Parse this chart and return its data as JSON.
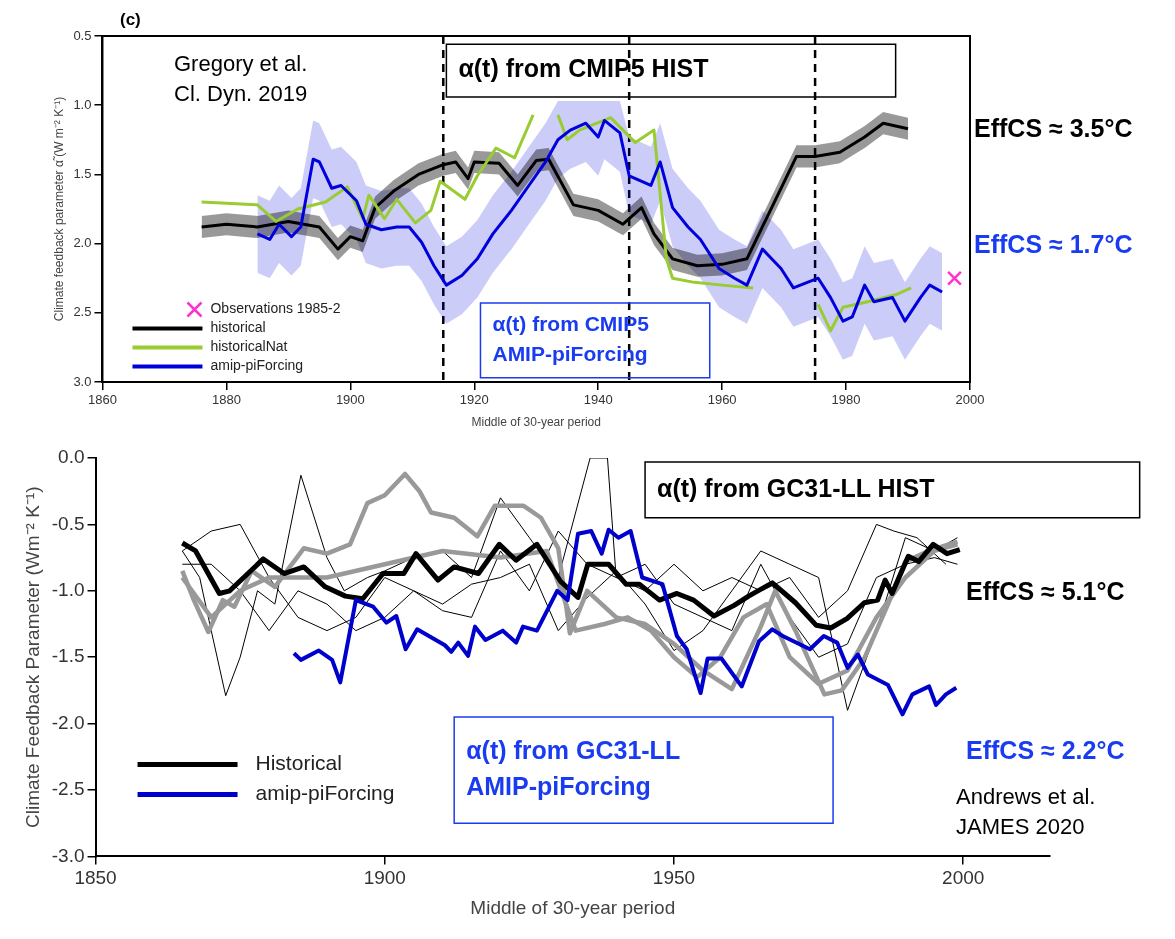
{
  "chart_data": [
    {
      "type": "line",
      "xlabel": "Middle of 30-year period",
      "ylabel": "Climate feedback parameter α̃ (W m⁻² K⁻¹)",
      "xlim": [
        1860,
        2000
      ],
      "ylim": [
        3,
        0.5
      ],
      "xticks": [
        1860,
        1880,
        1900,
        1920,
        1940,
        1960,
        1980,
        2000
      ],
      "yticks": [
        0.5,
        {
          "value": 1,
          "label": "1.0"
        },
        1.5,
        {
          "value": 2,
          "label": "2.0"
        },
        2.5,
        {
          "value": 3,
          "label": "3.0"
        }
      ],
      "legend": "bottom left",
      "ref_lines": [
        {
          "axis": "x",
          "value": 1915,
          "line_style": "dashed"
        },
        {
          "axis": "x",
          "value": 1945,
          "line_style": "dashed"
        },
        {
          "axis": "x",
          "value": 1975,
          "line_style": "dashed"
        }
      ],
      "annotations": [
        "(c)",
        "Gregory et al.\nCl. Dyn. 2019",
        "α(t) from CMIP5 HIST",
        "α(t) from CMIP5\nAMIP-piForcing",
        "EffCS ≈ 3.5°C",
        "EffCS ≈ 1.7°C"
      ],
      "series": [
        {
          "name": "Observations 1985-2",
          "type": "scatter",
          "marker": "cross",
          "color": "#ff33cc",
          "x": [
            1997.5
          ],
          "values": [
            2.25
          ]
        },
        {
          "name": "historical",
          "color": "#000000",
          "x": [
            1876,
            1880,
            1885,
            1890,
            1895,
            1898,
            1900,
            1902,
            1904,
            1907,
            1911,
            1915,
            1917,
            1919,
            1920,
            1924,
            1927,
            1930,
            1932,
            1936,
            1940,
            1944,
            1947,
            1949,
            1952,
            1956,
            1960,
            1964,
            1968,
            1972,
            1975,
            1979,
            1983,
            1986,
            1990
          ],
          "values": [
            1.88,
            1.86,
            1.88,
            1.84,
            1.88,
            2.04,
            1.95,
            1.98,
            1.74,
            1.62,
            1.5,
            1.43,
            1.41,
            1.53,
            1.41,
            1.42,
            1.58,
            1.4,
            1.39,
            1.72,
            1.76,
            1.86,
            1.74,
            1.93,
            2.11,
            2.16,
            2.15,
            2.11,
            1.74,
            1.37,
            1.37,
            1.34,
            1.23,
            1.13,
            1.17
          ],
          "lower": [
            1.8,
            1.78,
            1.8,
            1.76,
            1.8,
            1.96,
            1.87,
            1.9,
            1.66,
            1.54,
            1.42,
            1.35,
            1.33,
            1.45,
            1.33,
            1.34,
            1.5,
            1.32,
            1.31,
            1.64,
            1.68,
            1.78,
            1.66,
            1.85,
            2.03,
            2.08,
            2.07,
            2.03,
            1.66,
            1.29,
            1.29,
            1.26,
            1.15,
            1.05,
            1.09
          ],
          "upper": [
            1.96,
            1.94,
            1.96,
            1.92,
            1.96,
            2.12,
            2.03,
            2.06,
            1.82,
            1.7,
            1.58,
            1.51,
            1.49,
            1.61,
            1.49,
            1.5,
            1.66,
            1.48,
            1.47,
            1.8,
            1.84,
            1.94,
            1.82,
            2.01,
            2.19,
            2.24,
            2.23,
            2.19,
            1.82,
            1.45,
            1.45,
            1.42,
            1.31,
            1.21,
            1.25
          ]
        },
        {
          "name": "historicalNat",
          "color": "#99cc33",
          "x": [
            1876,
            1885,
            1888,
            1891.5,
            1896,
            1899.5,
            1902,
            1903,
            1905.5,
            1907.5,
            1910.5,
            1913,
            1914.5,
            1918.5,
            1920.5,
            1923.5,
            1926.5,
            1929.5,
            1931.5,
            1933.5,
            1935,
            1937,
            1942,
            1946,
            1949,
            1951,
            1952,
            1955.5,
            1960,
            1965,
            1970,
            1975.5,
            1977.5,
            1979.5,
            1983.5,
            1988,
            1990.5
          ],
          "values": [
            1.7,
            1.72,
            1.84,
            1.75,
            1.7,
            1.59,
            1.82,
            1.65,
            1.82,
            1.68,
            1.85,
            1.76,
            1.55,
            1.68,
            1.51,
            1.31,
            1.38,
            1.07,
            null,
            1.07,
            1.25,
            1.18,
            1.09,
            1.27,
            1.18,
            2.11,
            2.25,
            2.28,
            2.3,
            2.32,
            null,
            2.44,
            2.63,
            2.46,
            2.42,
            2.37,
            2.32
          ]
        },
        {
          "name": "amip-piForcing",
          "color": "#0000dd",
          "x": [
            1885,
            1887,
            1888.5,
            1890.5,
            1892,
            1894,
            1895,
            1897,
            1898.5,
            1901,
            1902.5,
            1905,
            1907.5,
            1909.5,
            1911.5,
            1913.5,
            1915.5,
            1918,
            1920.5,
            1923,
            1926,
            1928.5,
            1931.5,
            1933.5,
            1935.5,
            1938,
            1940,
            1941,
            1943.5,
            1945,
            1948.5,
            1950,
            1952,
            1954.5,
            1956.5,
            1959.5,
            1962,
            1964,
            1966.5,
            1969.5,
            1971.5,
            1975.5,
            1977.5,
            1979.5,
            1981,
            1983,
            1984.5,
            1987.5,
            1989.5,
            1992,
            1993.5,
            1995.5
          ],
          "values": [
            1.93,
            1.97,
            1.86,
            1.95,
            1.88,
            1.39,
            1.41,
            1.6,
            1.58,
            1.69,
            1.86,
            1.9,
            1.88,
            1.88,
            1.99,
            2.16,
            2.3,
            2.23,
            2.11,
            1.93,
            1.76,
            1.6,
            1.41,
            1.25,
            1.18,
            1.13,
            1.23,
            1.11,
            1.2,
            1.51,
            1.58,
            1.41,
            1.74,
            1.88,
            1.97,
            2.18,
            2.25,
            2.3,
            2.04,
            2.18,
            2.32,
            2.25,
            2.39,
            2.56,
            2.53,
            2.3,
            2.42,
            2.39,
            2.56,
            2.39,
            2.3,
            2.35
          ],
          "lower": [
            1.65,
            1.69,
            1.58,
            1.67,
            1.6,
            1.11,
            1.13,
            1.32,
            1.3,
            1.41,
            1.58,
            1.62,
            1.6,
            1.6,
            1.71,
            1.88,
            2.02,
            1.95,
            1.83,
            1.65,
            1.48,
            1.32,
            1.13,
            0.97,
            0.97,
            0.97,
            0.97,
            0.97,
            0.97,
            1.23,
            1.3,
            1.13,
            1.46,
            1.6,
            1.69,
            1.9,
            1.97,
            2.02,
            1.76,
            1.9,
            2.04,
            1.97,
            2.11,
            2.28,
            2.25,
            2.02,
            2.14,
            2.11,
            2.28,
            2.11,
            2.02,
            2.07
          ],
          "upper": [
            2.21,
            2.25,
            2.14,
            2.23,
            2.16,
            1.67,
            1.69,
            1.88,
            1.86,
            1.97,
            2.14,
            2.18,
            2.16,
            2.16,
            2.27,
            2.44,
            2.58,
            2.51,
            2.39,
            2.21,
            2.04,
            1.88,
            1.69,
            1.53,
            1.46,
            1.41,
            1.51,
            1.39,
            1.48,
            1.79,
            1.86,
            1.69,
            2.02,
            2.16,
            2.25,
            2.46,
            2.53,
            2.58,
            2.32,
            2.46,
            2.6,
            2.53,
            2.67,
            2.84,
            2.81,
            2.58,
            2.7,
            2.67,
            2.84,
            2.67,
            2.58,
            2.63
          ]
        }
      ]
    },
    {
      "type": "line",
      "xlabel": "Middle of 30-year period",
      "ylabel": "Climate Feedback Parameter (Wm⁻² K⁻¹)",
      "xlim": [
        1850,
        2015
      ],
      "ylim": [
        -3,
        0
      ],
      "xticks": [
        1850,
        1900,
        1950,
        2000
      ],
      "yticks": [
        {
          "value": 0,
          "label": "0.0"
        },
        -0.5,
        {
          "value": -1,
          "label": "-1.0"
        },
        -1.5,
        {
          "value": -2,
          "label": "-2.0"
        },
        -2.5,
        {
          "value": -3,
          "label": "-3.0"
        }
      ],
      "legend": "bottom left",
      "annotations": [
        "α(t) from GC31-LL HIST",
        "EffCS ≈ 5.1°C",
        "α(t) from GC31-LL\nAMIP-piForcing",
        "EffCS ≈ 2.2°C",
        "Andrews et al.\nJAMES 2020"
      ],
      "series": [
        {
          "color": "#000000",
          "x": [
            1865,
            1868,
            1870,
            1872.5,
            1875,
            1878,
            1881,
            1885.5,
            1890,
            1893,
            1897,
            1900,
            1905,
            1910,
            1915,
            1920,
            1925,
            1930,
            1935.5,
            1938.5,
            1940,
            1945,
            1950,
            1955,
            1960,
            1965,
            1970,
            1975,
            1980,
            1985,
            1988,
            1992,
            1997
          ],
          "values": [
            -0.7,
            -0.9,
            -1.3,
            -1.79,
            -1.5,
            -1.0,
            -1.1,
            -0.13,
            -0.75,
            -1.0,
            -0.9,
            -0.85,
            -0.75,
            -0.7,
            -0.9,
            -0.3,
            -0.6,
            -0.9,
            0.0,
            0.0,
            -0.9,
            -1.0,
            -0.8,
            -1.0,
            -0.9,
            -1.0,
            -0.9,
            -1.2,
            -1.0,
            -0.5,
            -0.55,
            -0.6,
            -0.8
          ]
        },
        {
          "color": "#000000",
          "x": [
            1865,
            1870,
            1875,
            1880,
            1885,
            1890,
            1895,
            1900,
            1905,
            1910,
            1915,
            1920,
            1925,
            1930,
            1935,
            1940,
            1945,
            1950,
            1955,
            1960,
            1965,
            1970,
            1975,
            1980,
            1985,
            1990,
            1995,
            1999
          ],
          "values": [
            -0.7,
            -0.55,
            -0.5,
            -0.9,
            -1.2,
            -1.3,
            -1.2,
            -0.9,
            -1.0,
            -1.1,
            -0.95,
            -0.9,
            -0.8,
            -1.3,
            -1.05,
            -0.85,
            -1.1,
            -1.45,
            -1.3,
            -1.0,
            -0.7,
            -0.8,
            -0.9,
            -1.9,
            -1.3,
            -0.6,
            -0.7,
            -0.6
          ]
        },
        {
          "color": "#000000",
          "x": [
            1865,
            1870,
            1875,
            1880,
            1885,
            1890,
            1895,
            1900,
            1905,
            1910,
            1915,
            1920,
            1925,
            1930,
            1935,
            1940,
            1945,
            1950,
            1955,
            1960,
            1965,
            1970,
            1975,
            1980,
            1985,
            1990,
            1995,
            1999
          ],
          "values": [
            -0.8,
            -0.8,
            -1.0,
            -1.3,
            -1.0,
            -1.1,
            -1.3,
            -1.2,
            -1.0,
            -1.15,
            -1.2,
            -0.7,
            -1.0,
            -0.55,
            -0.8,
            -0.9,
            -0.8,
            -1.1,
            -1.2,
            -1.3,
            -0.8,
            -1.2,
            -1.5,
            -1.4,
            -0.9,
            -0.8,
            -0.75,
            -0.8
          ]
        },
        {
          "color": "#999999",
          "x": [
            1865,
            1867,
            1869.5,
            1872,
            1874,
            1877,
            1881,
            1886,
            1890,
            1894,
            1897,
            1900,
            1903.5,
            1906,
            1908,
            1912,
            1916,
            1919,
            1924,
            1927,
            1930,
            1932,
            1935,
            1940,
            1945,
            1950,
            1955,
            1960,
            1965,
            1967.5,
            1971,
            1976,
            1979,
            1983,
            1987,
            1990,
            1994,
            1999
          ],
          "values": [
            -0.85,
            -1.07,
            -1.31,
            -1.07,
            -1.12,
            -0.85,
            -0.97,
            -0.68,
            -0.72,
            -0.65,
            -0.34,
            -0.28,
            -0.12,
            -0.25,
            -0.41,
            -0.45,
            -0.59,
            -0.36,
            -0.36,
            -0.45,
            -0.68,
            -1.32,
            -1.0,
            -1.2,
            -1.25,
            -1.4,
            -1.6,
            -1.74,
            -1.27,
            -1.0,
            -1.3,
            -1.78,
            -1.75,
            -1.5,
            -1.1,
            -0.78,
            -0.7,
            -0.63
          ]
        },
        {
          "color": "#999999",
          "x": [
            1865,
            1870,
            1875,
            1880,
            1890,
            1900,
            1910,
            1920,
            1928,
            1933,
            1938,
            1942,
            1946,
            1950,
            1954,
            1958,
            1962,
            1966,
            1970,
            1975,
            1980,
            1985,
            1990,
            1995,
            1999
          ],
          "values": [
            -0.9,
            -1.2,
            -1.0,
            -0.9,
            -0.9,
            -0.8,
            -0.7,
            -0.75,
            -0.7,
            -1.3,
            -1.25,
            -1.2,
            -1.3,
            -1.5,
            -1.65,
            -1.5,
            -1.2,
            -1.1,
            -1.5,
            -1.7,
            -1.6,
            -1.2,
            -0.9,
            -0.7,
            -0.65
          ]
        },
        {
          "name": "Historical",
          "color": "#000000",
          "x": [
            1865,
            1867.3,
            1871.4,
            1873.2,
            1879,
            1882.6,
            1886,
            1889.7,
            1893.2,
            1896.2,
            1899.7,
            1903.3,
            1905.4,
            1909.2,
            1912,
            1916.2,
            1919.8,
            1922.7,
            1926.3,
            1930.4,
            1933.4,
            1935.1,
            1938.7,
            1941.7,
            1944,
            1947.5,
            1950.5,
            1953.4,
            1956.9,
            1960.4,
            1962.9,
            1967,
            1971,
            1974.6,
            1977.1,
            1979.9,
            1982.9,
            1985.2,
            1986.5,
            1987.7,
            1990.5,
            1992.3,
            1994.8,
            1997.2,
            1999.4
          ],
          "values": [
            -0.64,
            -0.7,
            -1.02,
            -1.0,
            -0.76,
            -0.87,
            -0.82,
            -0.97,
            -1.04,
            -1.06,
            -0.87,
            -0.87,
            -0.72,
            -0.92,
            -0.82,
            -0.87,
            -0.65,
            -0.77,
            -0.65,
            -0.93,
            -1.05,
            -0.8,
            -0.8,
            -0.95,
            -0.95,
            -1.07,
            -1.02,
            -1.07,
            -1.19,
            -1.11,
            -1.04,
            -0.94,
            -1.09,
            -1.26,
            -1.28,
            -1.21,
            -1.09,
            -1.07,
            -0.92,
            -1.02,
            -0.74,
            -0.78,
            -0.65,
            -0.72,
            -0.69
          ]
        },
        {
          "name": "amip-piForcing",
          "color": "#0000cc",
          "x": [
            1884.3,
            1885.5,
            1888.6,
            1890.9,
            1892.3,
            1895,
            1898,
            1900.3,
            1902,
            1903.6,
            1905.6,
            1910.4,
            1911.5,
            1912.7,
            1914.4,
            1915.6,
            1917.4,
            1920.4,
            1922.7,
            1923.9,
            1926.3,
            1929.8,
            1931.6,
            1933.4,
            1935.7,
            1937.5,
            1938.7,
            1940.4,
            1942.5,
            1944.5,
            1948,
            1950.5,
            1952.2,
            1954.6,
            1955.8,
            1958.2,
            1961.7,
            1964.7,
            1967,
            1968.8,
            1973.5,
            1975.9,
            1978.2,
            1980,
            1981.8,
            1983.5,
            1987,
            1989.5,
            1991.2,
            1994.1,
            1995.3,
            1997,
            1998.8
          ],
          "values": [
            -1.47,
            -1.52,
            -1.45,
            -1.52,
            -1.69,
            -1.07,
            -1.12,
            -1.24,
            -1.19,
            -1.44,
            -1.29,
            -1.41,
            -1.46,
            -1.39,
            -1.49,
            -1.27,
            -1.37,
            -1.3,
            -1.39,
            -1.27,
            -1.3,
            -1.0,
            -1.07,
            -0.57,
            -0.55,
            -0.72,
            -0.54,
            -0.6,
            -0.55,
            -0.9,
            -0.95,
            -1.34,
            -1.44,
            -1.77,
            -1.51,
            -1.51,
            -1.72,
            -1.38,
            -1.29,
            -1.34,
            -1.44,
            -1.34,
            -1.39,
            -1.58,
            -1.48,
            -1.63,
            -1.71,
            -1.93,
            -1.78,
            -1.72,
            -1.86,
            -1.78,
            -1.73
          ]
        }
      ]
    }
  ]
}
